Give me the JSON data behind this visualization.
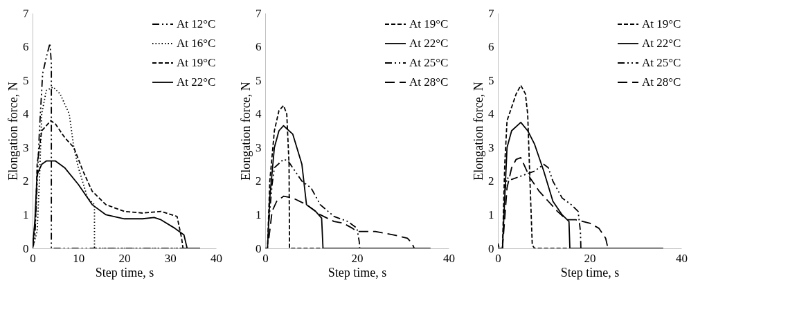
{
  "chart_data": [
    {
      "type": "line",
      "xlabel": "Step time, s",
      "ylabel": "Elongation force, N",
      "xlim": [
        0,
        40
      ],
      "xticks": [
        0,
        10,
        20,
        30,
        40
      ],
      "ylim": [
        0,
        7
      ],
      "yticks": [
        0,
        1,
        2,
        3,
        4,
        5,
        6,
        7
      ],
      "grid": false,
      "legend": "top right",
      "series": [
        {
          "name": "At 12°C",
          "color": "#000000",
          "line_style": "dashdot",
          "x": [
            0,
            0.5,
            1.5,
            2.2,
            3.2,
            3.8,
            4.1,
            4.1,
            36.5
          ],
          "values": [
            0,
            0.3,
            3.5,
            5.2,
            5.8,
            6.1,
            5.5,
            0,
            0
          ]
        },
        {
          "name": "At 16°C",
          "color": "#000000",
          "line_style": "dotted",
          "x": [
            0,
            1,
            1.5,
            2,
            3,
            4.5,
            6,
            8,
            9,
            10,
            12,
            13.5,
            13.5,
            36
          ],
          "values": [
            0,
            0.5,
            2,
            4,
            4.7,
            4.8,
            4.6,
            4,
            3,
            2.4,
            1.5,
            1.3,
            0,
            0
          ]
        },
        {
          "name": "At 19°C",
          "color": "#000000",
          "line_style": "dashed",
          "x": [
            0,
            0.7,
            1,
            2,
            4,
            5,
            7,
            9,
            11,
            13,
            16,
            20,
            24,
            28,
            31.5,
            32.5,
            32.8,
            36
          ],
          "values": [
            0,
            1,
            2.5,
            3.5,
            3.8,
            3.7,
            3.3,
            3,
            2.3,
            1.7,
            1.3,
            1.1,
            1.05,
            1.1,
            0.95,
            0.3,
            0,
            0
          ]
        },
        {
          "name": "At 22°C",
          "color": "#000000",
          "line_style": "solid",
          "x": [
            0,
            0.5,
            1,
            2,
            3,
            5,
            7,
            10,
            13,
            16,
            20,
            24,
            26.5,
            28,
            31,
            33,
            33.7,
            36.5
          ],
          "values": [
            0,
            0.8,
            2.2,
            2.5,
            2.6,
            2.6,
            2.4,
            1.9,
            1.3,
            1,
            0.88,
            0.88,
            0.92,
            0.85,
            0.6,
            0.4,
            0,
            0
          ]
        }
      ]
    },
    {
      "type": "line",
      "xlabel": "Step time, s",
      "ylabel": "Elongation force, N",
      "xlim": [
        0,
        40
      ],
      "xticks": [
        0,
        20,
        40
      ],
      "ylim": [
        0,
        7
      ],
      "yticks": [
        0,
        1,
        2,
        3,
        4,
        5,
        6,
        7
      ],
      "grid": false,
      "legend": "top right",
      "series": [
        {
          "name": "At 19°C",
          "color": "#000000",
          "line_style": "dashed",
          "x": [
            0,
            0.5,
            1,
            2,
            3,
            4,
            4.7,
            5.2,
            5.3,
            36
          ],
          "values": [
            0,
            0,
            2,
            3.5,
            4.1,
            4.25,
            4,
            2.5,
            0,
            0
          ]
        },
        {
          "name": "At 22°C",
          "color": "#000000",
          "line_style": "solid",
          "x": [
            0,
            0.5,
            1,
            2,
            3,
            4,
            6,
            8,
            9,
            11,
            12.3,
            12.6,
            36
          ],
          "values": [
            0,
            0,
            1.5,
            3,
            3.5,
            3.65,
            3.4,
            2.5,
            1.3,
            1.1,
            0.9,
            0,
            0
          ]
        },
        {
          "name": "At 25°C",
          "color": "#000000",
          "line_style": "dashdot",
          "x": [
            0.8,
            1.5,
            2,
            4,
            5,
            8,
            10,
            12,
            15,
            18,
            20,
            20.5,
            20.6,
            36
          ],
          "values": [
            0.8,
            1.9,
            2.4,
            2.65,
            2.6,
            2,
            1.8,
            1.3,
            0.95,
            0.8,
            0.6,
            0.2,
            0,
            0
          ]
        },
        {
          "name": "At 28°C",
          "color": "#000000",
          "line_style": "longdash",
          "x": [
            0.8,
            1.5,
            2.5,
            4,
            6,
            9,
            12,
            15,
            17,
            19,
            20,
            24,
            28,
            31,
            32,
            32.5
          ],
          "values": [
            0.3,
            1.1,
            1.4,
            1.55,
            1.5,
            1.3,
            1,
            0.8,
            0.75,
            0.6,
            0.5,
            0.5,
            0.4,
            0.3,
            0.15,
            0
          ]
        }
      ]
    },
    {
      "type": "line",
      "xlabel": "Step time, s",
      "ylabel": "Elongation force, N",
      "xlim": [
        0,
        40
      ],
      "xticks": [
        0,
        20,
        40
      ],
      "ylim": [
        0,
        7
      ],
      "yticks": [
        0,
        1,
        2,
        3,
        4,
        5,
        6,
        7
      ],
      "grid": false,
      "legend": "top right",
      "series": [
        {
          "name": "At 19°C",
          "color": "#000000",
          "line_style": "dashed",
          "x": [
            0,
            0.3,
            1,
            1.5,
            2,
            3,
            4,
            5,
            6,
            6.5,
            7,
            7.5,
            8,
            36
          ],
          "values": [
            0.15,
            0,
            0,
            2.5,
            3.8,
            4.2,
            4.6,
            4.85,
            4.6,
            4,
            2,
            0.1,
            0,
            0
          ]
        },
        {
          "name": "At 22°C",
          "color": "#000000",
          "line_style": "solid",
          "x": [
            0,
            1,
            1.5,
            2,
            3,
            5,
            6.5,
            8,
            10,
            12,
            14,
            15.5,
            15.7,
            36
          ],
          "values": [
            0,
            0,
            1.5,
            3,
            3.5,
            3.75,
            3.5,
            3.1,
            2.3,
            1.4,
            1,
            0.8,
            0,
            0
          ]
        },
        {
          "name": "At 25°C",
          "color": "#000000",
          "line_style": "dashdot",
          "x": [
            1.5,
            2,
            3,
            5,
            8,
            10,
            11,
            12,
            14,
            16,
            17.5,
            18,
            18.1,
            36
          ],
          "values": [
            1.7,
            2.1,
            2.05,
            2.15,
            2.3,
            2.5,
            2.4,
            2,
            1.5,
            1.3,
            1.1,
            0.5,
            0,
            0
          ]
        },
        {
          "name": "At 28°C",
          "color": "#000000",
          "line_style": "longdash",
          "x": [
            1,
            2,
            3,
            4,
            5,
            7,
            9,
            11,
            13,
            15,
            17,
            20,
            22,
            23.5,
            24,
            36
          ],
          "values": [
            0,
            1.8,
            2.4,
            2.65,
            2.7,
            2.1,
            1.7,
            1.4,
            1.1,
            0.85,
            0.85,
            0.75,
            0.6,
            0.3,
            0,
            0
          ]
        }
      ]
    }
  ]
}
